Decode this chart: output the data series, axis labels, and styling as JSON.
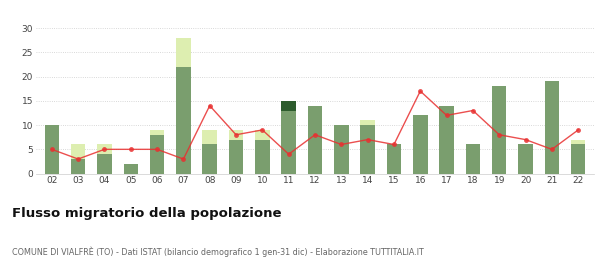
{
  "years": [
    "02",
    "03",
    "04",
    "05",
    "06",
    "07",
    "08",
    "09",
    "10",
    "11",
    "12",
    "13",
    "14",
    "15",
    "16",
    "17",
    "18",
    "19",
    "20",
    "21",
    "22"
  ],
  "iscritti_comuni": [
    10,
    3,
    4,
    2,
    8,
    22,
    6,
    7,
    7,
    13,
    14,
    10,
    10,
    6,
    12,
    14,
    6,
    18,
    6,
    19,
    6
  ],
  "iscritti_estero": [
    0,
    3,
    2,
    0,
    1,
    6,
    3,
    2,
    2,
    0,
    0,
    0,
    1,
    0,
    0,
    0,
    0,
    0,
    0,
    0,
    1
  ],
  "iscritti_altri": [
    0,
    0,
    0,
    0,
    0,
    0,
    0,
    0,
    0,
    2,
    0,
    0,
    0,
    0,
    0,
    0,
    0,
    0,
    0,
    0,
    0
  ],
  "cancellati": [
    5,
    3,
    5,
    5,
    5,
    3,
    14,
    8,
    9,
    4,
    8,
    6,
    7,
    6,
    17,
    12,
    13,
    8,
    7,
    5,
    9
  ],
  "color_comuni": "#7a9e6e",
  "color_estero": "#ddeeb0",
  "color_altri": "#2d5c2d",
  "color_cancellati": "#e83030",
  "bg_color": "#ffffff",
  "grid_color": "#cccccc",
  "title": "Flusso migratorio della popolazione",
  "subtitle": "COMUNE DI VIALFRÈ (TO) - Dati ISTAT (bilancio demografico 1 gen-31 dic) - Elaborazione TUTTITALIA.IT",
  "ylim": [
    0,
    30
  ],
  "yticks": [
    0,
    5,
    10,
    15,
    20,
    25,
    30
  ]
}
